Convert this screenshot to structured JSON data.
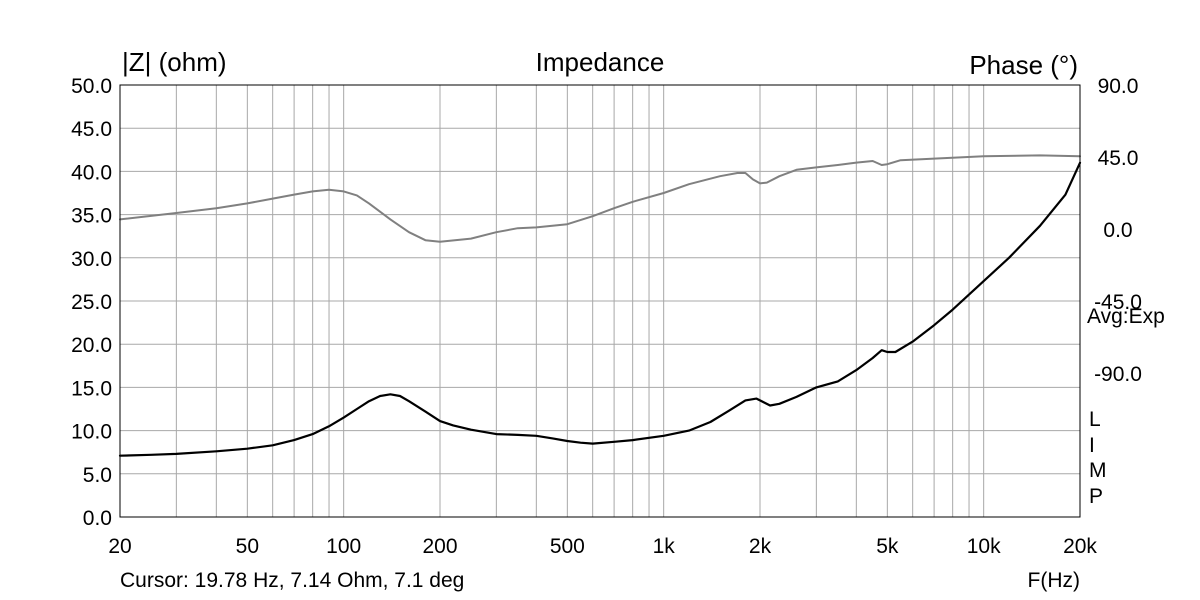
{
  "chart_data": {
    "type": "line",
    "title": "Impedance",
    "ylabel_left": "|Z| (ohm)",
    "ylabel_right": "Phase (°)",
    "xlabel": "F(Hz)",
    "x_scale": "log",
    "xlim": [
      20,
      20000
    ],
    "ylim_left": [
      0,
      50
    ],
    "ylim_right": [
      -180,
      90
    ],
    "grid": true,
    "x_tick_labels": [
      {
        "value": 20,
        "label": "20"
      },
      {
        "value": 50,
        "label": "50"
      },
      {
        "value": 100,
        "label": "100"
      },
      {
        "value": 200,
        "label": "200"
      },
      {
        "value": 500,
        "label": "500"
      },
      {
        "value": 1000,
        "label": "1k"
      },
      {
        "value": 2000,
        "label": "2k"
      },
      {
        "value": 5000,
        "label": "5k"
      },
      {
        "value": 10000,
        "label": "10k"
      },
      {
        "value": 20000,
        "label": "20k"
      }
    ],
    "y_left_tick_labels": [
      {
        "value": 50,
        "label": "50.0"
      },
      {
        "value": 45,
        "label": "45.0"
      },
      {
        "value": 40,
        "label": "40.0"
      },
      {
        "value": 35,
        "label": "35.0"
      },
      {
        "value": 30,
        "label": "30.0"
      },
      {
        "value": 25,
        "label": "25.0"
      },
      {
        "value": 20,
        "label": "20.0"
      },
      {
        "value": 15,
        "label": "15.0"
      },
      {
        "value": 10,
        "label": "10.0"
      },
      {
        "value": 5,
        "label": "5.0"
      },
      {
        "value": 0,
        "label": "0.0"
      }
    ],
    "y_right_tick_labels": [
      {
        "value": 90,
        "label": "90.0"
      },
      {
        "value": 45,
        "label": "45.0"
      },
      {
        "value": 0,
        "label": "0.0"
      },
      {
        "value": -45,
        "label": "-45.0"
      },
      {
        "value": -90,
        "label": "-90.0"
      }
    ],
    "series": [
      {
        "axis": "left",
        "color": "#000000",
        "points": [
          [
            20,
            7.1
          ],
          [
            25,
            7.2
          ],
          [
            30,
            7.3
          ],
          [
            40,
            7.6
          ],
          [
            50,
            7.9
          ],
          [
            60,
            8.3
          ],
          [
            70,
            8.9
          ],
          [
            80,
            9.6
          ],
          [
            90,
            10.5
          ],
          [
            100,
            11.5
          ],
          [
            110,
            12.5
          ],
          [
            120,
            13.4
          ],
          [
            130,
            14.0
          ],
          [
            140,
            14.2
          ],
          [
            150,
            14.0
          ],
          [
            160,
            13.4
          ],
          [
            180,
            12.2
          ],
          [
            200,
            11.1
          ],
          [
            220,
            10.6
          ],
          [
            250,
            10.1
          ],
          [
            300,
            9.6
          ],
          [
            350,
            9.5
          ],
          [
            400,
            9.4
          ],
          [
            450,
            9.1
          ],
          [
            500,
            8.8
          ],
          [
            550,
            8.6
          ],
          [
            600,
            8.5
          ],
          [
            700,
            8.7
          ],
          [
            800,
            8.9
          ],
          [
            1000,
            9.4
          ],
          [
            1200,
            10.0
          ],
          [
            1400,
            11.0
          ],
          [
            1600,
            12.3
          ],
          [
            1800,
            13.5
          ],
          [
            1950,
            13.7
          ],
          [
            2050,
            13.3
          ],
          [
            2150,
            12.9
          ],
          [
            2300,
            13.1
          ],
          [
            2600,
            13.9
          ],
          [
            3000,
            15.0
          ],
          [
            3500,
            15.7
          ],
          [
            4000,
            17.0
          ],
          [
            4500,
            18.4
          ],
          [
            4800,
            19.3
          ],
          [
            5000,
            19.1
          ],
          [
            5300,
            19.1
          ],
          [
            6000,
            20.3
          ],
          [
            7000,
            22.2
          ],
          [
            8000,
            24.0
          ],
          [
            10000,
            27.3
          ],
          [
            12000,
            30.0
          ],
          [
            15000,
            33.7
          ],
          [
            18000,
            37.3
          ],
          [
            20000,
            41.0
          ]
        ]
      },
      {
        "axis": "right",
        "color": "#808080",
        "points": [
          [
            20,
            6.0
          ],
          [
            30,
            10.0
          ],
          [
            40,
            13.0
          ],
          [
            50,
            16.0
          ],
          [
            60,
            19.0
          ],
          [
            70,
            21.5
          ],
          [
            80,
            23.5
          ],
          [
            90,
            24.5
          ],
          [
            100,
            23.5
          ],
          [
            110,
            21.0
          ],
          [
            120,
            16.0
          ],
          [
            140,
            6.0
          ],
          [
            160,
            -2.0
          ],
          [
            180,
            -7.0
          ],
          [
            200,
            -8.0
          ],
          [
            250,
            -6.0
          ],
          [
            300,
            -2.0
          ],
          [
            350,
            0.5
          ],
          [
            400,
            1.0
          ],
          [
            500,
            3.0
          ],
          [
            600,
            8.0
          ],
          [
            700,
            13.0
          ],
          [
            800,
            17.0
          ],
          [
            1000,
            22.5
          ],
          [
            1200,
            28.0
          ],
          [
            1500,
            33.0
          ],
          [
            1700,
            35.0
          ],
          [
            1800,
            35.0
          ],
          [
            1900,
            31.0
          ],
          [
            2000,
            28.5
          ],
          [
            2100,
            29.0
          ],
          [
            2300,
            33.0
          ],
          [
            2600,
            37.0
          ],
          [
            3000,
            38.5
          ],
          [
            3500,
            40.0
          ],
          [
            4000,
            41.5
          ],
          [
            4500,
            42.5
          ],
          [
            4800,
            40.0
          ],
          [
            5000,
            40.5
          ],
          [
            5500,
            43.0
          ],
          [
            7000,
            44.0
          ],
          [
            10000,
            45.5
          ],
          [
            15000,
            46.0
          ],
          [
            20000,
            45.5
          ]
        ]
      }
    ],
    "side_labels": [
      "Avg:Exp",
      "L",
      "I",
      "M",
      "P"
    ],
    "cursor_readout": "Cursor: 19.78 Hz, 7.14 Ohm, 7.1 deg"
  }
}
